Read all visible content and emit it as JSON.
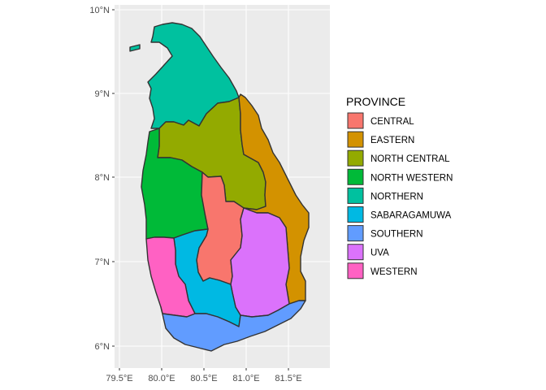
{
  "map": {
    "x_ticks": [
      "79.5°E",
      "80.0°E",
      "80.5°E",
      "81.0°E",
      "81.5°E"
    ],
    "y_ticks": [
      "6°N",
      "7°N",
      "8°N",
      "9°N",
      "10°N"
    ],
    "x_range": [
      79.45,
      81.95
    ],
    "y_range": [
      5.85,
      10.05
    ]
  },
  "legend": {
    "title": "PROVINCE",
    "position": "right",
    "items": [
      {
        "label": "CENTRAL",
        "color": "#F8766D"
      },
      {
        "label": "EASTERN",
        "color": "#D39200"
      },
      {
        "label": "NORTH CENTRAL",
        "color": "#93AA00"
      },
      {
        "label": "NORTH WESTERN",
        "color": "#00BA38"
      },
      {
        "label": "NORTHERN",
        "color": "#00C19F"
      },
      {
        "label": "SABARAGAMUWA",
        "color": "#00B9E3"
      },
      {
        "label": "SOUTHERN",
        "color": "#619CFF"
      },
      {
        "label": "UVA",
        "color": "#DB72FB"
      },
      {
        "label": "WESTERN",
        "color": "#FF61C3"
      }
    ]
  }
}
